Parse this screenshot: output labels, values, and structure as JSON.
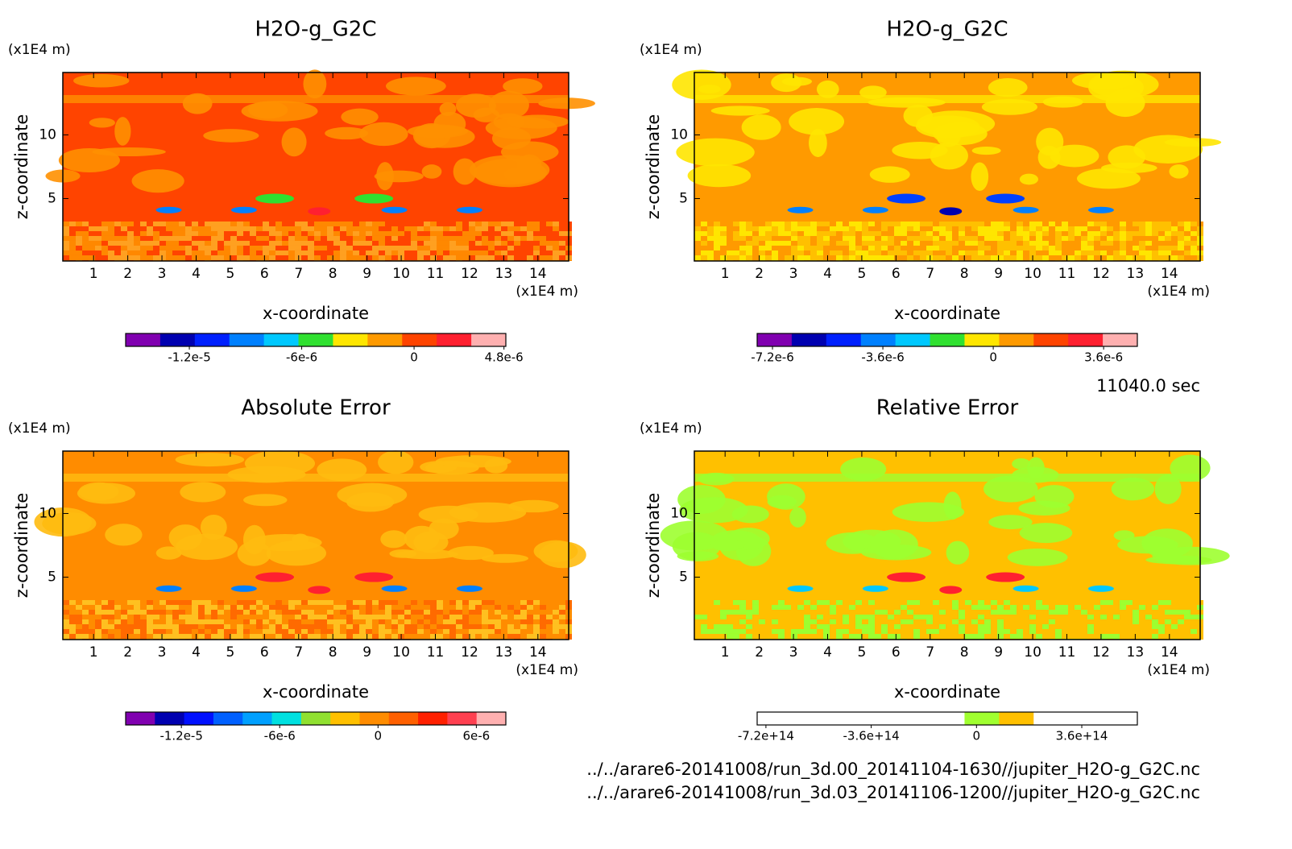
{
  "chart_data": [
    {
      "type": "contour",
      "title": "H2O-g_G2C",
      "xlabel": "x-coordinate",
      "ylabel": "z-coordinate",
      "xunit": "(x1E4 m)",
      "yunit": "(x1E4 m)",
      "xlim": [
        0.1,
        14.9
      ],
      "ylim": [
        0.1,
        14.9
      ],
      "xticks": [
        1,
        2,
        3,
        4,
        5,
        6,
        7,
        8,
        9,
        10,
        11,
        12,
        13,
        14
      ],
      "yticks": [
        5,
        10
      ],
      "colorbar": {
        "lim": [
          -1.54e-05,
          4.9e-06
        ],
        "colors": [
          "#8000b0",
          "#0000b0",
          "#0020ff",
          "#0080ff",
          "#00c8ff",
          "#30e030",
          "#ffe600",
          "#ff9a00",
          "#ff4400",
          "#ff2030",
          "#ffb0b0"
        ],
        "ticks": [
          {
            "value": -1.2e-05,
            "label": "-1.2e-5"
          },
          {
            "value": -6e-06,
            "label": "-6e-6"
          },
          0,
          {
            "value": 4.8e-06,
            "label": "4.8e-6"
          }
        ]
      }
    },
    {
      "type": "contour",
      "title": "H2O-g_G2C",
      "xlabel": "x-coordinate",
      "ylabel": "z-coordinate",
      "xunit": "(x1E4 m)",
      "yunit": "(x1E4 m)",
      "xlim": [
        0.1,
        14.9
      ],
      "ylim": [
        0.1,
        14.9
      ],
      "xticks": [
        1,
        2,
        3,
        4,
        5,
        6,
        7,
        8,
        9,
        10,
        11,
        12,
        13,
        14
      ],
      "yticks": [
        5,
        10
      ],
      "colorbar": {
        "lim": [
          -7.7e-06,
          4.7e-06
        ],
        "colors": [
          "#8000b0",
          "#0000b0",
          "#0020ff",
          "#0080ff",
          "#00c8ff",
          "#30e030",
          "#ffe600",
          "#ff9a00",
          "#ff4400",
          "#ff2030",
          "#ffb0b0"
        ],
        "ticks": [
          {
            "value": -7.2e-06,
            "label": "-7.2e-6"
          },
          {
            "value": -3.6e-06,
            "label": "-3.6e-6"
          },
          0,
          {
            "value": 3.6e-06,
            "label": "3.6e-6"
          }
        ]
      }
    },
    {
      "type": "contour",
      "title": "Absolute Error",
      "xlabel": "x-coordinate",
      "ylabel": "z-coordinate",
      "xunit": "(x1E4 m)",
      "yunit": "(x1E4 m)",
      "xlim": [
        0.1,
        14.9
      ],
      "ylim": [
        0.1,
        14.9
      ],
      "xticks": [
        1,
        2,
        3,
        4,
        5,
        6,
        7,
        8,
        9,
        10,
        11,
        12,
        13,
        14
      ],
      "yticks": [
        5,
        10
      ],
      "colorbar": {
        "lim": [
          -1.54e-05,
          7.8e-06
        ],
        "colors": [
          "#8000b0",
          "#0000b0",
          "#0010ff",
          "#0060ff",
          "#00a0ff",
          "#00e0e0",
          "#90e030",
          "#ffc000",
          "#ff8c00",
          "#ff6000",
          "#ff2000",
          "#ff4050",
          "#ffb0b0"
        ],
        "ticks": [
          {
            "value": -1.2e-05,
            "label": "-1.2e-5"
          },
          {
            "value": -6e-06,
            "label": "-6e-6"
          },
          0,
          {
            "value": 6e-06,
            "label": "6e-6"
          }
        ]
      }
    },
    {
      "type": "contour",
      "title": "Relative Error",
      "xlabel": "x-coordinate",
      "ylabel": "z-coordinate",
      "xunit": "(x1E4 m)",
      "yunit": "(x1E4 m)",
      "xlim": [
        0.1,
        14.9
      ],
      "ylim": [
        0.1,
        14.9
      ],
      "xticks": [
        1,
        2,
        3,
        4,
        5,
        6,
        7,
        8,
        9,
        10,
        11,
        12,
        13,
        14
      ],
      "yticks": [
        5,
        10
      ],
      "colorbar": {
        "lim": [
          -750000000000000.0,
          550000000000000.0
        ],
        "colors": [
          "#ffffff",
          "#ffffff",
          "#ffffff",
          "#ffffff",
          "#ffffff",
          "#ffffff",
          "#a0ff30",
          "#ffc000",
          "#ffffff",
          "#ffffff",
          "#ffffff"
        ],
        "ticks": [
          {
            "value": -720000000000000.0,
            "label": "-7.2e+14"
          },
          {
            "value": -360000000000000.0,
            "label": "-3.6e+14"
          },
          0,
          {
            "value": 360000000000000.0,
            "label": "3.6e+14"
          }
        ]
      }
    }
  ],
  "time_label": "11040.0 sec",
  "files": [
    "../../arare6-20141008/run_3d.00_20141104-1630//jupiter_H2O-g_G2C.nc",
    "../../arare6-20141008/run_3d.03_20141106-1200//jupiter_H2O-g_G2C.nc"
  ]
}
